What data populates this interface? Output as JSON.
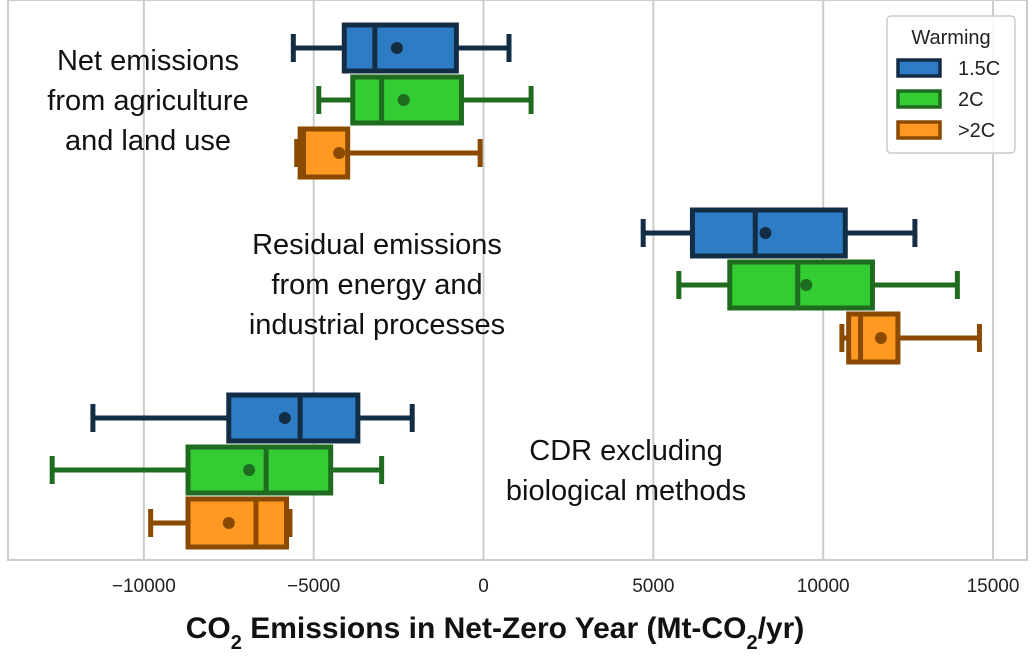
{
  "chart_data": {
    "type": "box",
    "orientation": "horizontal",
    "xlabel_parts": {
      "pre": "CO",
      "sub1": "2",
      "mid": " Emissions in Net-Zero Year (Mt-CO",
      "sub2": "2",
      "post": "/yr)"
    },
    "xlim": [
      -14000,
      16000
    ],
    "xticks": [
      {
        "value": -10000,
        "label": "−10000"
      },
      {
        "value": -5000,
        "label": "−5000"
      },
      {
        "value": 0,
        "label": "0"
      },
      {
        "value": 5000,
        "label": "5000"
      },
      {
        "value": 10000,
        "label": "10000"
      },
      {
        "value": 15000,
        "label": "15000"
      }
    ],
    "grid": true,
    "legend": {
      "title": "Warming",
      "placement": "top-right",
      "entries": [
        "1.5C",
        "2C",
        ">2C"
      ]
    },
    "series": [
      {
        "name": "1.5C",
        "fill": "#2e7cc4",
        "edge": "#132d45"
      },
      {
        "name": "2C",
        "fill": "#33cc33",
        "edge": "#1f6b1f"
      },
      {
        "name": ">2C",
        "fill": "#ff9922",
        "edge": "#8a4a00"
      }
    ],
    "groups": [
      {
        "label_lines": [
          "Net emissions",
          "from agriculture",
          "and land use"
        ],
        "boxes": [
          {
            "series": "1.5C",
            "whisker_low": -5600,
            "q1": -4100,
            "median": -3200,
            "q3": -800,
            "whisker_high": 750,
            "mean": -2550
          },
          {
            "series": "2C",
            "whisker_low": -4850,
            "q1": -3850,
            "median": -3000,
            "q3": -650,
            "whisker_high": 1400,
            "mean": -2350
          },
          {
            "series": ">2C",
            "whisker_low": -5500,
            "q1": -5400,
            "median": -5300,
            "q3": -4000,
            "whisker_high": -100,
            "mean": -4250
          }
        ]
      },
      {
        "label_lines": [
          "Residual emissions",
          "from energy and",
          "industrial processes"
        ],
        "boxes": [
          {
            "series": "1.5C",
            "whisker_low": 4700,
            "q1": 6150,
            "median": 8000,
            "q3": 10650,
            "whisker_high": 12700,
            "mean": 8300
          },
          {
            "series": "2C",
            "whisker_low": 5750,
            "q1": 7250,
            "median": 9250,
            "q3": 11450,
            "whisker_high": 13950,
            "mean": 9500
          },
          {
            "series": ">2C",
            "whisker_low": 10550,
            "q1": 10750,
            "median": 11100,
            "q3": 12200,
            "whisker_high": 14600,
            "mean": 11700
          }
        ]
      },
      {
        "label_lines": [
          "CDR excluding",
          "biological methods"
        ],
        "boxes": [
          {
            "series": "1.5C",
            "whisker_low": -11500,
            "q1": -7500,
            "median": -5400,
            "q3": -3700,
            "whisker_high": -2100,
            "mean": -5850
          },
          {
            "series": "2C",
            "whisker_low": -12700,
            "q1": -8700,
            "median": -6400,
            "q3": -4500,
            "whisker_high": -3000,
            "mean": -6900
          },
          {
            "series": ">2C",
            "whisker_low": -9800,
            "q1": -8700,
            "median": -6700,
            "q3": -5800,
            "whisker_high": -5700,
            "mean": -7500
          }
        ]
      }
    ]
  }
}
